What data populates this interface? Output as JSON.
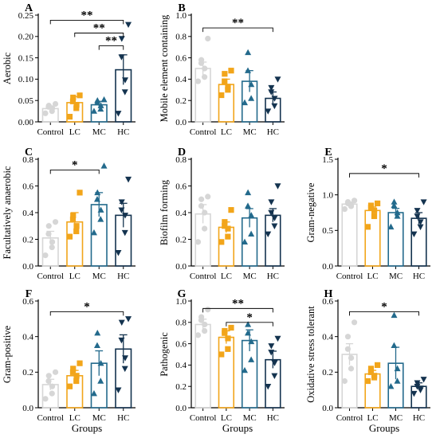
{
  "colors": {
    "Control": "#d6d6d6",
    "LC": "#f2a51a",
    "MC": "#236a8c",
    "HC": "#14334f"
  },
  "groups": [
    "Control",
    "LC",
    "MC",
    "HC"
  ],
  "bottom_label": "Groups",
  "chart_data": [
    {
      "panel": "A",
      "type": "bar",
      "ylabel": "Aerobic",
      "ylim": [
        0,
        0.25
      ],
      "yticks": [
        "0.00",
        "0.05",
        "0.10",
        "0.15",
        "0.20",
        "0.25"
      ],
      "categories": [
        "Control",
        "LC",
        "MC",
        "HC"
      ],
      "values": [
        0.031,
        0.045,
        0.04,
        0.122
      ],
      "errors": [
        0.006,
        0.014,
        0.008,
        0.035
      ],
      "points": [
        [
          0.02,
          0.025,
          0.032,
          0.035,
          0.038,
          0.042
        ],
        [
          0.012,
          0.032,
          0.04,
          0.048,
          0.057,
          0.062
        ],
        [
          0.025,
          0.03,
          0.038,
          0.045,
          0.05,
          0.052
        ],
        [
          0.02,
          0.07,
          0.098,
          0.152,
          0.195,
          0.228
        ]
      ],
      "markers": [
        "circle",
        "square",
        "triangle",
        "triangle-down"
      ],
      "significance": [
        {
          "from": 0,
          "to": 3,
          "label": "**",
          "level": 0.238
        },
        {
          "from": 1,
          "to": 3,
          "label": "**",
          "level": 0.208
        },
        {
          "from": 2,
          "to": 3,
          "label": "**",
          "level": 0.178
        }
      ]
    },
    {
      "panel": "B",
      "type": "bar",
      "ylabel": "Mobile element containing",
      "ylim": [
        0,
        1.0
      ],
      "yticks": [
        "0.0",
        "0.2",
        "0.4",
        "0.6",
        "0.8",
        "1.0"
      ],
      "categories": [
        "Control",
        "LC",
        "MC",
        "HC"
      ],
      "values": [
        0.5,
        0.35,
        0.38,
        0.22
      ],
      "errors": [
        0.06,
        0.05,
        0.1,
        0.06
      ],
      "points": [
        [
          0.38,
          0.42,
          0.5,
          0.55,
          0.58,
          0.78
        ],
        [
          0.25,
          0.3,
          0.33,
          0.38,
          0.45,
          0.48
        ],
        [
          0.18,
          0.22,
          0.35,
          0.48,
          0.65
        ],
        [
          0.1,
          0.15,
          0.22,
          0.28,
          0.32,
          0.4
        ]
      ],
      "markers": [
        "circle",
        "square",
        "triangle",
        "triangle-down"
      ],
      "significance": [
        {
          "from": 0,
          "to": 3,
          "label": "**",
          "level": 0.88
        }
      ]
    },
    {
      "panel": "C",
      "type": "bar",
      "ylabel": "Facultatively anaerobic",
      "ylim": [
        0,
        0.8
      ],
      "yticks": [
        "0.0",
        "0.2",
        "0.4",
        "0.6",
        "0.8"
      ],
      "categories": [
        "Control",
        "LC",
        "MC",
        "HC"
      ],
      "values": [
        0.21,
        0.33,
        0.46,
        0.38
      ],
      "errors": [
        0.05,
        0.07,
        0.09,
        0.09
      ],
      "points": [
        [
          0.08,
          0.14,
          0.18,
          0.24,
          0.3,
          0.33
        ],
        [
          0.22,
          0.26,
          0.3,
          0.35,
          0.38,
          0.55
        ],
        [
          0.25,
          0.35,
          0.42,
          0.5,
          0.55,
          0.75
        ],
        [
          0.1,
          0.25,
          0.38,
          0.42,
          0.48,
          0.65
        ]
      ],
      "markers": [
        "circle",
        "square",
        "triangle",
        "triangle-down"
      ],
      "significance": [
        {
          "from": 0,
          "to": 2,
          "label": "*",
          "level": 0.72
        }
      ]
    },
    {
      "panel": "D",
      "type": "bar",
      "ylabel": "Biofilm forming",
      "ylim": [
        0,
        0.8
      ],
      "yticks": [
        "0.0",
        "0.2",
        "0.4",
        "0.6",
        "0.8"
      ],
      "categories": [
        "Control",
        "LC",
        "MC",
        "HC"
      ],
      "values": [
        0.39,
        0.29,
        0.36,
        0.38
      ],
      "errors": [
        0.07,
        0.04,
        0.07,
        0.05
      ],
      "points": [
        [
          0.18,
          0.28,
          0.4,
          0.45,
          0.5,
          0.52
        ],
        [
          0.18,
          0.22,
          0.28,
          0.3,
          0.33,
          0.42
        ],
        [
          0.18,
          0.24,
          0.38,
          0.45,
          0.55
        ],
        [
          0.24,
          0.3,
          0.36,
          0.4,
          0.48,
          0.6
        ]
      ],
      "markers": [
        "circle",
        "square",
        "triangle",
        "triangle-down"
      ],
      "significance": []
    },
    {
      "panel": "E",
      "type": "bar",
      "ylabel": "Gram-negative",
      "ylim": [
        0,
        1.5
      ],
      "yticks": [
        "0.0",
        "0.5",
        "1.0",
        "1.5"
      ],
      "categories": [
        "Control",
        "LC",
        "MC",
        "HC"
      ],
      "values": [
        0.87,
        0.78,
        0.75,
        0.67
      ],
      "errors": [
        0.03,
        0.05,
        0.06,
        0.08
      ],
      "points": [
        [
          0.8,
          0.84,
          0.86,
          0.88,
          0.9,
          0.92
        ],
        [
          0.55,
          0.7,
          0.78,
          0.82,
          0.85,
          0.88
        ],
        [
          0.55,
          0.7,
          0.75,
          0.85,
          0.9
        ],
        [
          0.45,
          0.55,
          0.62,
          0.7,
          0.78,
          0.9
        ]
      ],
      "markers": [
        "circle",
        "square",
        "triangle",
        "triangle-down"
      ],
      "significance": [
        {
          "from": 0,
          "to": 3,
          "label": "*",
          "level": 1.3
        }
      ]
    },
    {
      "panel": "F",
      "type": "bar",
      "ylabel": "Gram-positive",
      "ylim": [
        0,
        0.6
      ],
      "yticks": [
        "0.0",
        "0.2",
        "0.4",
        "0.6"
      ],
      "categories": [
        "Control",
        "LC",
        "MC",
        "HC"
      ],
      "values": [
        0.13,
        0.18,
        0.25,
        0.33
      ],
      "errors": [
        0.03,
        0.03,
        0.07,
        0.08
      ],
      "points": [
        [
          0.05,
          0.08,
          0.12,
          0.15,
          0.18,
          0.2
        ],
        [
          0.12,
          0.15,
          0.18,
          0.2,
          0.22,
          0.25
        ],
        [
          0.08,
          0.15,
          0.25,
          0.35,
          0.42
        ],
        [
          0.1,
          0.22,
          0.28,
          0.38,
          0.48,
          0.5
        ]
      ],
      "markers": [
        "circle",
        "square",
        "triangle",
        "triangle-down"
      ],
      "significance": [
        {
          "from": 0,
          "to": 3,
          "label": "*",
          "level": 0.54
        }
      ]
    },
    {
      "panel": "G",
      "type": "bar",
      "ylabel": "Pathogenic",
      "ylim": [
        0,
        1.0
      ],
      "yticks": [
        "0.0",
        "0.2",
        "0.4",
        "0.6",
        "0.8",
        "1.0"
      ],
      "categories": [
        "Control",
        "LC",
        "MC",
        "HC"
      ],
      "values": [
        0.78,
        0.66,
        0.63,
        0.45
      ],
      "errors": [
        0.05,
        0.06,
        0.1,
        0.08
      ],
      "points": [
        [
          0.68,
          0.72,
          0.78,
          0.82,
          0.85,
          0.92
        ],
        [
          0.5,
          0.55,
          0.65,
          0.7,
          0.72,
          0.75
        ],
        [
          0.35,
          0.45,
          0.62,
          0.7,
          0.78
        ],
        [
          0.2,
          0.3,
          0.42,
          0.52,
          0.58,
          0.65
        ]
      ],
      "markers": [
        "circle",
        "square",
        "triangle",
        "triangle-down"
      ],
      "significance": [
        {
          "from": 0,
          "to": 3,
          "label": "**",
          "level": 0.93
        },
        {
          "from": 1,
          "to": 3,
          "label": "*",
          "level": 0.8
        }
      ]
    },
    {
      "panel": "H",
      "type": "bar",
      "ylabel": "Oxidative stress tolerant",
      "ylim": [
        0,
        0.6
      ],
      "yticks": [
        "0.0",
        "0.2",
        "0.4",
        "0.6"
      ],
      "categories": [
        "Control",
        "LC",
        "MC",
        "HC"
      ],
      "values": [
        0.3,
        0.19,
        0.25,
        0.12
      ],
      "errors": [
        0.06,
        0.02,
        0.09,
        0.02
      ],
      "points": [
        [
          0.15,
          0.22,
          0.28,
          0.33,
          0.4,
          0.48
        ],
        [
          0.15,
          0.17,
          0.18,
          0.2,
          0.22,
          0.24
        ],
        [
          0.12,
          0.15,
          0.22,
          0.35,
          0.52
        ],
        [
          0.08,
          0.1,
          0.11,
          0.12,
          0.14,
          0.16
        ]
      ],
      "markers": [
        "circle",
        "square",
        "triangle",
        "triangle-down"
      ],
      "significance": [
        {
          "from": 0,
          "to": 3,
          "label": "*",
          "level": 0.54
        }
      ]
    }
  ]
}
